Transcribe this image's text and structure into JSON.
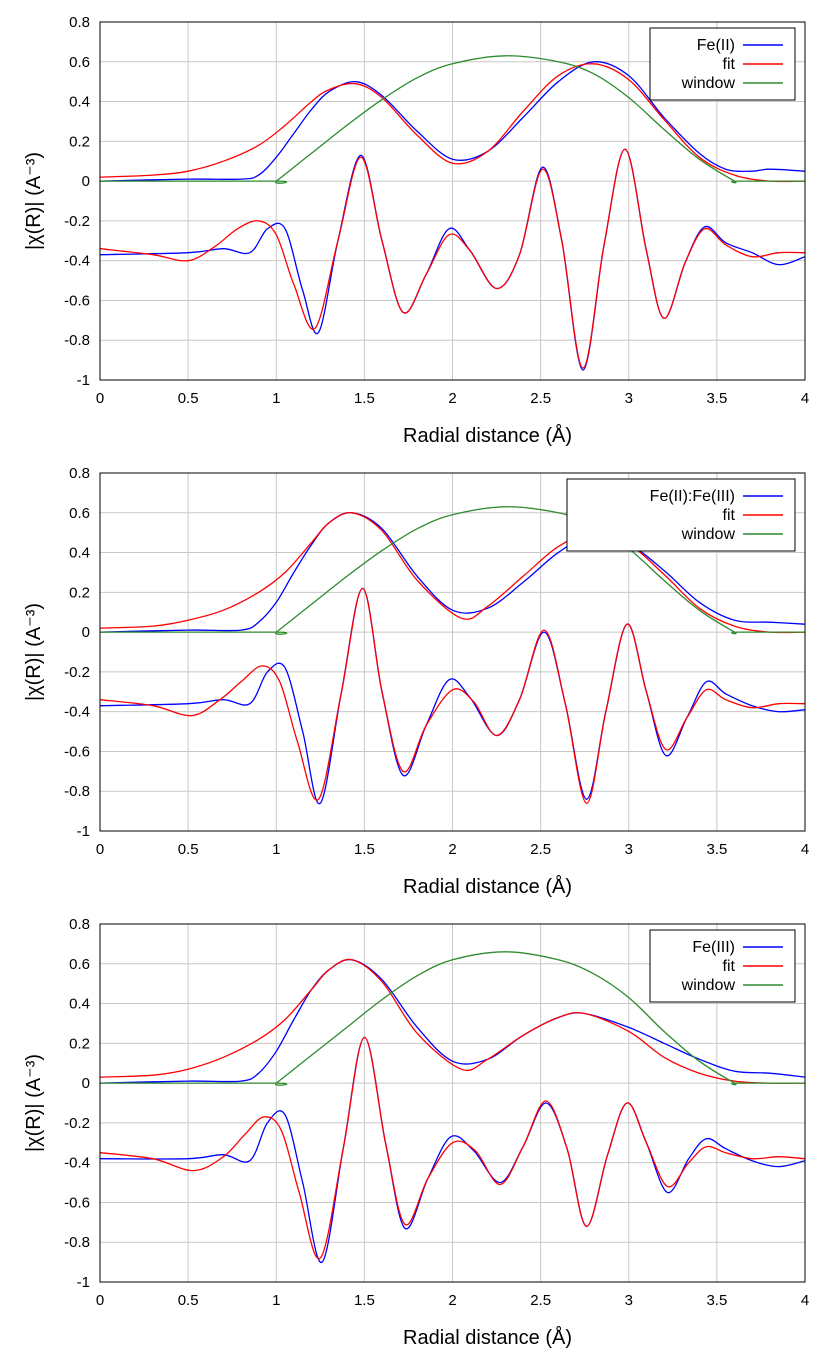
{
  "chart_data": [
    {
      "type": "line",
      "xlabel": "Radial distance (Å)",
      "ylabel": "|χ(R)| (A⁻³)",
      "xlim": [
        0,
        4
      ],
      "ylim": [
        -1,
        0.8
      ],
      "xticks": [
        0,
        0.5,
        1,
        1.5,
        2,
        2.5,
        3,
        3.5,
        4
      ],
      "yticks": [
        -1,
        -0.8,
        -0.6,
        -0.4,
        -0.2,
        0,
        0.2,
        0.4,
        0.6,
        0.8
      ],
      "grid": true,
      "legend_position": "top-right",
      "series": [
        {
          "name": "Fe(II)",
          "color": "#0000ff",
          "role": "magnitude",
          "x": [
            0,
            0.5,
            0.8,
            0.9,
            1.0,
            1.1,
            1.2,
            1.3,
            1.45,
            1.6,
            1.8,
            2.0,
            2.2,
            2.4,
            2.6,
            2.8,
            3.0,
            3.2,
            3.4,
            3.55,
            3.7,
            3.8,
            4.0
          ],
          "y": [
            0.0,
            0.01,
            0.01,
            0.03,
            0.12,
            0.24,
            0.36,
            0.45,
            0.5,
            0.43,
            0.25,
            0.11,
            0.15,
            0.32,
            0.5,
            0.6,
            0.53,
            0.32,
            0.14,
            0.06,
            0.05,
            0.06,
            0.05
          ]
        },
        {
          "name": "Fe(II)",
          "color": "#0000ff",
          "role": "real-part",
          "x": [
            0,
            0.5,
            0.7,
            0.85,
            0.95,
            1.05,
            1.15,
            1.24,
            1.35,
            1.48,
            1.6,
            1.72,
            1.85,
            1.98,
            2.1,
            2.25,
            2.38,
            2.51,
            2.62,
            2.74,
            2.86,
            2.98,
            3.1,
            3.2,
            3.32,
            3.43,
            3.55,
            3.7,
            3.85,
            4.0
          ],
          "y": [
            -0.37,
            -0.36,
            -0.34,
            -0.36,
            -0.24,
            -0.24,
            -0.55,
            -0.76,
            -0.3,
            0.13,
            -0.3,
            -0.66,
            -0.47,
            -0.24,
            -0.35,
            -0.54,
            -0.37,
            0.07,
            -0.3,
            -0.95,
            -0.32,
            0.16,
            -0.35,
            -0.69,
            -0.41,
            -0.23,
            -0.31,
            -0.36,
            -0.42,
            -0.38
          ]
        },
        {
          "name": "fit",
          "color": "#ff0000",
          "role": "magnitude",
          "x": [
            0,
            0.3,
            0.5,
            0.7,
            0.9,
            1.05,
            1.2,
            1.3,
            1.45,
            1.6,
            1.8,
            2.0,
            2.2,
            2.4,
            2.6,
            2.8,
            3.0,
            3.2,
            3.4,
            3.6,
            3.8,
            4.0
          ],
          "y": [
            0.02,
            0.03,
            0.05,
            0.1,
            0.18,
            0.28,
            0.4,
            0.46,
            0.49,
            0.42,
            0.23,
            0.09,
            0.15,
            0.35,
            0.53,
            0.59,
            0.51,
            0.31,
            0.12,
            0.03,
            0.0,
            0.0
          ]
        },
        {
          "name": "fit",
          "color": "#ff0000",
          "role": "real-part",
          "x": [
            0,
            0.3,
            0.5,
            0.65,
            0.78,
            0.9,
            1.0,
            1.1,
            1.22,
            1.35,
            1.48,
            1.6,
            1.72,
            1.85,
            1.98,
            2.1,
            2.25,
            2.38,
            2.51,
            2.62,
            2.74,
            2.86,
            2.98,
            3.1,
            3.2,
            3.32,
            3.43,
            3.55,
            3.7,
            3.85,
            4.0
          ],
          "y": [
            -0.34,
            -0.37,
            -0.4,
            -0.33,
            -0.24,
            -0.2,
            -0.27,
            -0.52,
            -0.74,
            -0.3,
            0.12,
            -0.3,
            -0.66,
            -0.47,
            -0.27,
            -0.35,
            -0.54,
            -0.37,
            0.06,
            -0.3,
            -0.94,
            -0.32,
            0.16,
            -0.35,
            -0.69,
            -0.41,
            -0.24,
            -0.32,
            -0.38,
            -0.36,
            -0.36
          ]
        },
        {
          "name": "window",
          "color": "#2e8b2e",
          "role": "window",
          "x": [
            0,
            0.99,
            1.0,
            1.2,
            1.4,
            1.6,
            1.8,
            2.0,
            2.3,
            2.6,
            2.8,
            3.0,
            3.2,
            3.4,
            3.6,
            3.61,
            4.0
          ],
          "y": [
            0.0,
            0.0,
            0.0,
            0.14,
            0.28,
            0.41,
            0.52,
            0.59,
            0.63,
            0.6,
            0.54,
            0.42,
            0.26,
            0.11,
            0.0,
            0.0,
            0.0
          ]
        }
      ]
    },
    {
      "type": "line",
      "xlabel": "Radial distance (Å)",
      "ylabel": "|χ(R)| (A⁻³)",
      "xlim": [
        0,
        4
      ],
      "ylim": [
        -1,
        0.8
      ],
      "xticks": [
        0,
        0.5,
        1,
        1.5,
        2,
        2.5,
        3,
        3.5,
        4
      ],
      "yticks": [
        -1,
        -0.8,
        -0.6,
        -0.4,
        -0.2,
        0,
        0.2,
        0.4,
        0.6,
        0.8
      ],
      "grid": true,
      "legend_position": "top-right",
      "series": [
        {
          "name": "Fe(II):Fe(III)",
          "color": "#0000ff",
          "role": "magnitude",
          "x": [
            0,
            0.5,
            0.8,
            0.9,
            1.0,
            1.1,
            1.2,
            1.3,
            1.43,
            1.6,
            1.8,
            2.0,
            2.2,
            2.4,
            2.6,
            2.78,
            3.0,
            3.2,
            3.4,
            3.6,
            3.8,
            4.0
          ],
          "y": [
            0.0,
            0.01,
            0.01,
            0.05,
            0.15,
            0.3,
            0.44,
            0.55,
            0.6,
            0.52,
            0.28,
            0.11,
            0.12,
            0.25,
            0.4,
            0.48,
            0.44,
            0.31,
            0.15,
            0.06,
            0.05,
            0.04
          ]
        },
        {
          "name": "Fe(II):Fe(III)",
          "color": "#0000ff",
          "role": "real-part",
          "x": [
            0,
            0.5,
            0.7,
            0.85,
            0.95,
            1.05,
            1.15,
            1.25,
            1.37,
            1.49,
            1.6,
            1.72,
            1.85,
            1.98,
            2.1,
            2.25,
            2.38,
            2.52,
            2.64,
            2.76,
            2.87,
            2.99,
            3.1,
            3.21,
            3.33,
            3.44,
            3.55,
            3.7,
            3.85,
            4.0
          ],
          "y": [
            -0.37,
            -0.36,
            -0.34,
            -0.36,
            -0.2,
            -0.18,
            -0.5,
            -0.86,
            -0.3,
            0.22,
            -0.3,
            -0.72,
            -0.47,
            -0.24,
            -0.33,
            -0.52,
            -0.34,
            0.0,
            -0.36,
            -0.84,
            -0.4,
            0.04,
            -0.3,
            -0.62,
            -0.43,
            -0.25,
            -0.31,
            -0.37,
            -0.4,
            -0.39
          ]
        },
        {
          "name": "fit",
          "color": "#ff0000",
          "role": "magnitude",
          "x": [
            0,
            0.3,
            0.5,
            0.7,
            0.9,
            1.05,
            1.2,
            1.3,
            1.43,
            1.6,
            1.8,
            2.05,
            2.2,
            2.4,
            2.6,
            2.78,
            3.0,
            3.2,
            3.4,
            3.6,
            3.8,
            4.0
          ],
          "y": [
            0.02,
            0.03,
            0.06,
            0.11,
            0.2,
            0.3,
            0.45,
            0.55,
            0.6,
            0.51,
            0.26,
            0.07,
            0.13,
            0.28,
            0.43,
            0.49,
            0.44,
            0.29,
            0.12,
            0.03,
            0.0,
            0.0
          ]
        },
        {
          "name": "fit",
          "color": "#ff0000",
          "role": "real-part",
          "x": [
            0,
            0.3,
            0.52,
            0.68,
            0.8,
            0.92,
            1.02,
            1.12,
            1.24,
            1.37,
            1.49,
            1.6,
            1.72,
            1.85,
            2.0,
            2.12,
            2.25,
            2.38,
            2.52,
            2.64,
            2.76,
            2.87,
            2.99,
            3.1,
            3.21,
            3.33,
            3.44,
            3.55,
            3.7,
            3.85,
            4.0
          ],
          "y": [
            -0.34,
            -0.37,
            -0.42,
            -0.34,
            -0.25,
            -0.17,
            -0.25,
            -0.55,
            -0.84,
            -0.3,
            0.22,
            -0.3,
            -0.7,
            -0.47,
            -0.29,
            -0.35,
            -0.52,
            -0.34,
            0.01,
            -0.36,
            -0.86,
            -0.4,
            0.04,
            -0.3,
            -0.59,
            -0.43,
            -0.29,
            -0.34,
            -0.38,
            -0.36,
            -0.36
          ]
        },
        {
          "name": "window",
          "color": "#2e8b2e",
          "role": "window",
          "x": [
            0,
            0.99,
            1.0,
            1.2,
            1.4,
            1.6,
            1.8,
            2.0,
            2.3,
            2.6,
            2.8,
            3.0,
            3.2,
            3.4,
            3.6,
            3.61,
            4.0
          ],
          "y": [
            0.0,
            0.0,
            0.0,
            0.14,
            0.28,
            0.41,
            0.52,
            0.59,
            0.63,
            0.6,
            0.54,
            0.42,
            0.26,
            0.11,
            0.0,
            0.0,
            0.0
          ]
        }
      ]
    },
    {
      "type": "line",
      "xlabel": "Radial distance (Å)",
      "ylabel": "|χ(R)| (A⁻³)",
      "xlim": [
        0,
        4
      ],
      "ylim": [
        -1,
        0.8
      ],
      "xticks": [
        0,
        0.5,
        1,
        1.5,
        2,
        2.5,
        3,
        3.5,
        4
      ],
      "yticks": [
        -1,
        -0.8,
        -0.6,
        -0.4,
        -0.2,
        0,
        0.2,
        0.4,
        0.6,
        0.8
      ],
      "grid": true,
      "legend_position": "top-right",
      "series": [
        {
          "name": "Fe(III)",
          "color": "#0000ff",
          "role": "magnitude",
          "x": [
            0,
            0.5,
            0.8,
            0.9,
            1.0,
            1.1,
            1.2,
            1.3,
            1.43,
            1.6,
            1.8,
            2.0,
            2.2,
            2.4,
            2.6,
            2.75,
            3.0,
            3.2,
            3.4,
            3.6,
            3.8,
            4.0
          ],
          "y": [
            0.0,
            0.01,
            0.01,
            0.05,
            0.16,
            0.32,
            0.47,
            0.57,
            0.62,
            0.52,
            0.28,
            0.11,
            0.12,
            0.24,
            0.33,
            0.35,
            0.28,
            0.2,
            0.12,
            0.06,
            0.05,
            0.03
          ]
        },
        {
          "name": "Fe(III)",
          "color": "#0000ff",
          "role": "real-part",
          "x": [
            0,
            0.5,
            0.7,
            0.85,
            0.95,
            1.05,
            1.15,
            1.26,
            1.38,
            1.5,
            1.62,
            1.73,
            1.86,
            1.99,
            2.12,
            2.27,
            2.4,
            2.53,
            2.65,
            2.76,
            2.88,
            2.99,
            3.1,
            3.22,
            3.34,
            3.44,
            3.55,
            3.7,
            3.85,
            4.0
          ],
          "y": [
            -0.38,
            -0.38,
            -0.36,
            -0.39,
            -0.2,
            -0.16,
            -0.5,
            -0.9,
            -0.33,
            0.23,
            -0.3,
            -0.73,
            -0.48,
            -0.27,
            -0.34,
            -0.5,
            -0.32,
            -0.1,
            -0.33,
            -0.72,
            -0.36,
            -0.1,
            -0.3,
            -0.55,
            -0.38,
            -0.28,
            -0.33,
            -0.39,
            -0.42,
            -0.39
          ]
        },
        {
          "name": "fit",
          "color": "#ff0000",
          "role": "magnitude",
          "x": [
            0,
            0.3,
            0.5,
            0.7,
            0.9,
            1.05,
            1.2,
            1.3,
            1.43,
            1.6,
            1.8,
            2.05,
            2.2,
            2.4,
            2.6,
            2.75,
            3.0,
            3.2,
            3.4,
            3.6,
            3.8,
            4.0
          ],
          "y": [
            0.03,
            0.04,
            0.07,
            0.13,
            0.22,
            0.32,
            0.47,
            0.57,
            0.62,
            0.51,
            0.25,
            0.07,
            0.12,
            0.24,
            0.33,
            0.35,
            0.26,
            0.13,
            0.05,
            0.01,
            0.0,
            0.0
          ]
        },
        {
          "name": "fit",
          "color": "#ff0000",
          "role": "real-part",
          "x": [
            0,
            0.3,
            0.53,
            0.7,
            0.82,
            0.93,
            1.03,
            1.13,
            1.25,
            1.38,
            1.5,
            1.62,
            1.73,
            1.86,
            2.0,
            2.13,
            2.27,
            2.4,
            2.53,
            2.65,
            2.76,
            2.88,
            2.99,
            3.1,
            3.22,
            3.34,
            3.44,
            3.55,
            3.7,
            3.85,
            4.0
          ],
          "y": [
            -0.35,
            -0.38,
            -0.44,
            -0.37,
            -0.26,
            -0.17,
            -0.24,
            -0.55,
            -0.88,
            -0.33,
            0.23,
            -0.3,
            -0.71,
            -0.48,
            -0.3,
            -0.34,
            -0.51,
            -0.32,
            -0.09,
            -0.33,
            -0.72,
            -0.36,
            -0.1,
            -0.3,
            -0.52,
            -0.4,
            -0.32,
            -0.35,
            -0.38,
            -0.37,
            -0.38
          ]
        },
        {
          "name": "window",
          "color": "#2e8b2e",
          "role": "window",
          "x": [
            0,
            0.99,
            1.0,
            1.2,
            1.4,
            1.6,
            1.8,
            2.0,
            2.3,
            2.6,
            2.8,
            3.0,
            3.2,
            3.4,
            3.6,
            3.61,
            4.0
          ],
          "y": [
            0.0,
            0.0,
            0.0,
            0.14,
            0.28,
            0.42,
            0.54,
            0.62,
            0.66,
            0.62,
            0.55,
            0.43,
            0.26,
            0.11,
            0.0,
            0.0,
            0.0
          ]
        }
      ]
    }
  ]
}
